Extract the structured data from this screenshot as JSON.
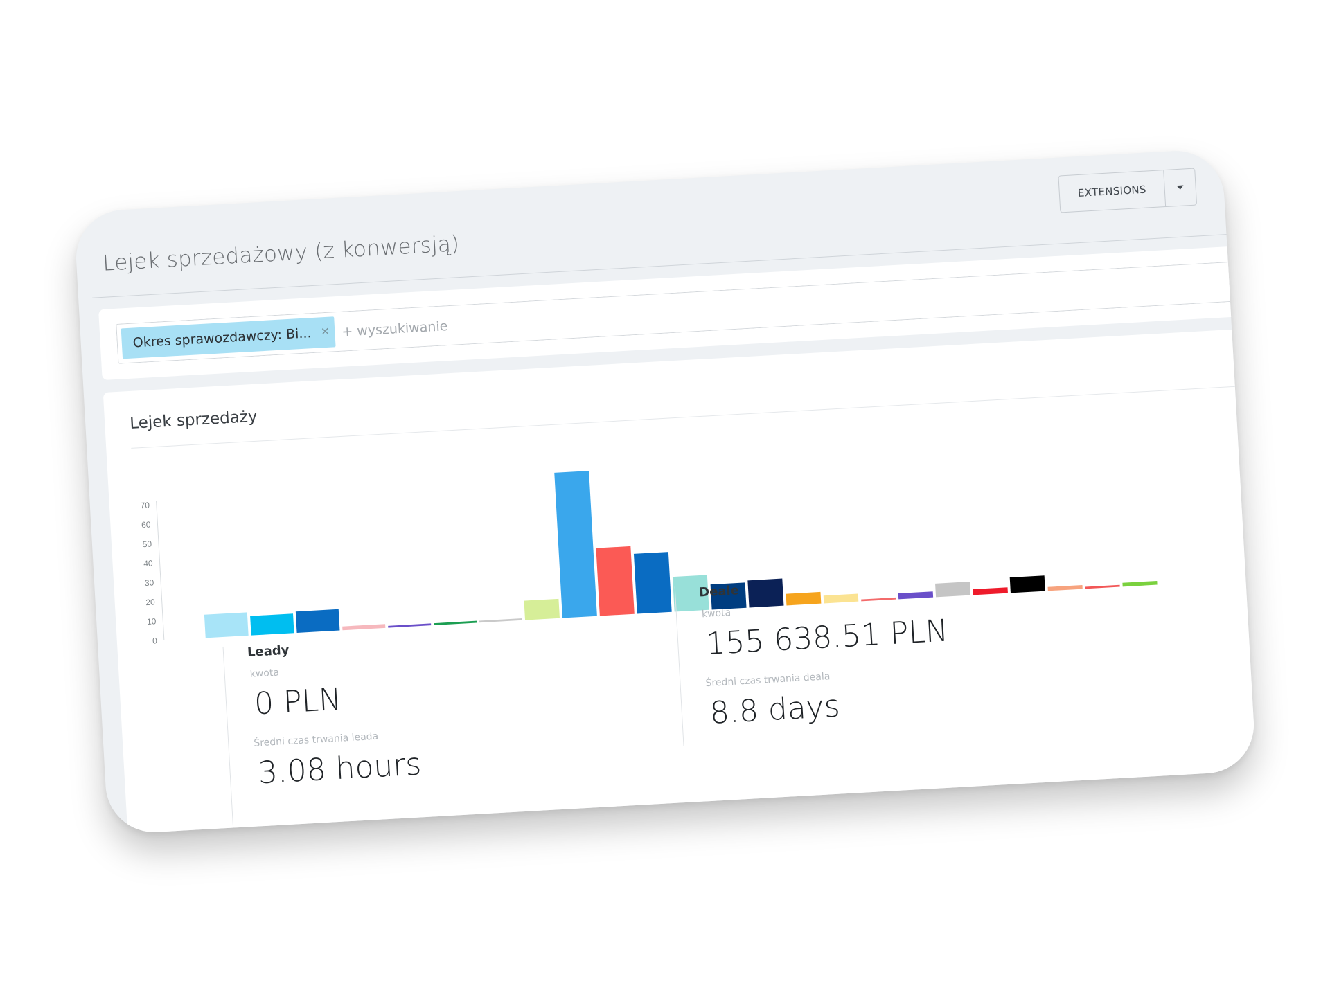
{
  "header": {
    "title": "Lejek sprzedażowy (z konwersją)",
    "extensions_label": "EXTENSIONS"
  },
  "filter": {
    "tag_label": "Okres sprawozdawczy: Bi...",
    "tag_close": "×",
    "search_placeholder": "+ wyszukiwanie"
  },
  "chart_panel": {
    "title": "Lejek sprzedaży"
  },
  "chart_data": {
    "type": "bar",
    "title": "Lejek sprzedaży",
    "xlabel": "",
    "ylabel": "",
    "ylim": [
      0,
      75
    ],
    "yticks": [
      0,
      10,
      20,
      30,
      40,
      50,
      60,
      70
    ],
    "grid": false,
    "legend": "none",
    "groups": [
      {
        "name": "Leady",
        "values": [
          12,
          10,
          11,
          2,
          1,
          1,
          1
        ],
        "colors": [
          "#a8e4f8",
          "#00bef0",
          "#0a6cc2",
          "#f6b8bd",
          "#6a4fc9",
          "#1c9e52",
          "#c9c9c9"
        ]
      },
      {
        "name": "Deale",
        "values": [
          10,
          75,
          35,
          31,
          18,
          13,
          14,
          6,
          4,
          1,
          3,
          7,
          3,
          8,
          2,
          1,
          2
        ],
        "colors": [
          "#d6ee98",
          "#3aa7ec",
          "#fb5a55",
          "#0a6cc2",
          "#98e0d9",
          "#003d80",
          "#0b2156",
          "#f6a41d",
          "#fbe392",
          "#f36b6b",
          "#6a4fc9",
          "#c5c5c5",
          "#ee1b2b",
          "#000000",
          "#f7a37e",
          "#f25757",
          "#7ad13e"
        ]
      }
    ]
  },
  "stats": {
    "leady": {
      "name": "Leady",
      "amount_label": "kwota",
      "amount_value": "0 PLN",
      "duration_label": "Średni czas trwania leada",
      "duration_value": "3.08 hours"
    },
    "deale": {
      "name": "Deale",
      "amount_label": "kwota",
      "amount_value": "155 638.51 PLN",
      "duration_label": "Średni czas trwania deala",
      "duration_value": "8.8 days"
    }
  }
}
